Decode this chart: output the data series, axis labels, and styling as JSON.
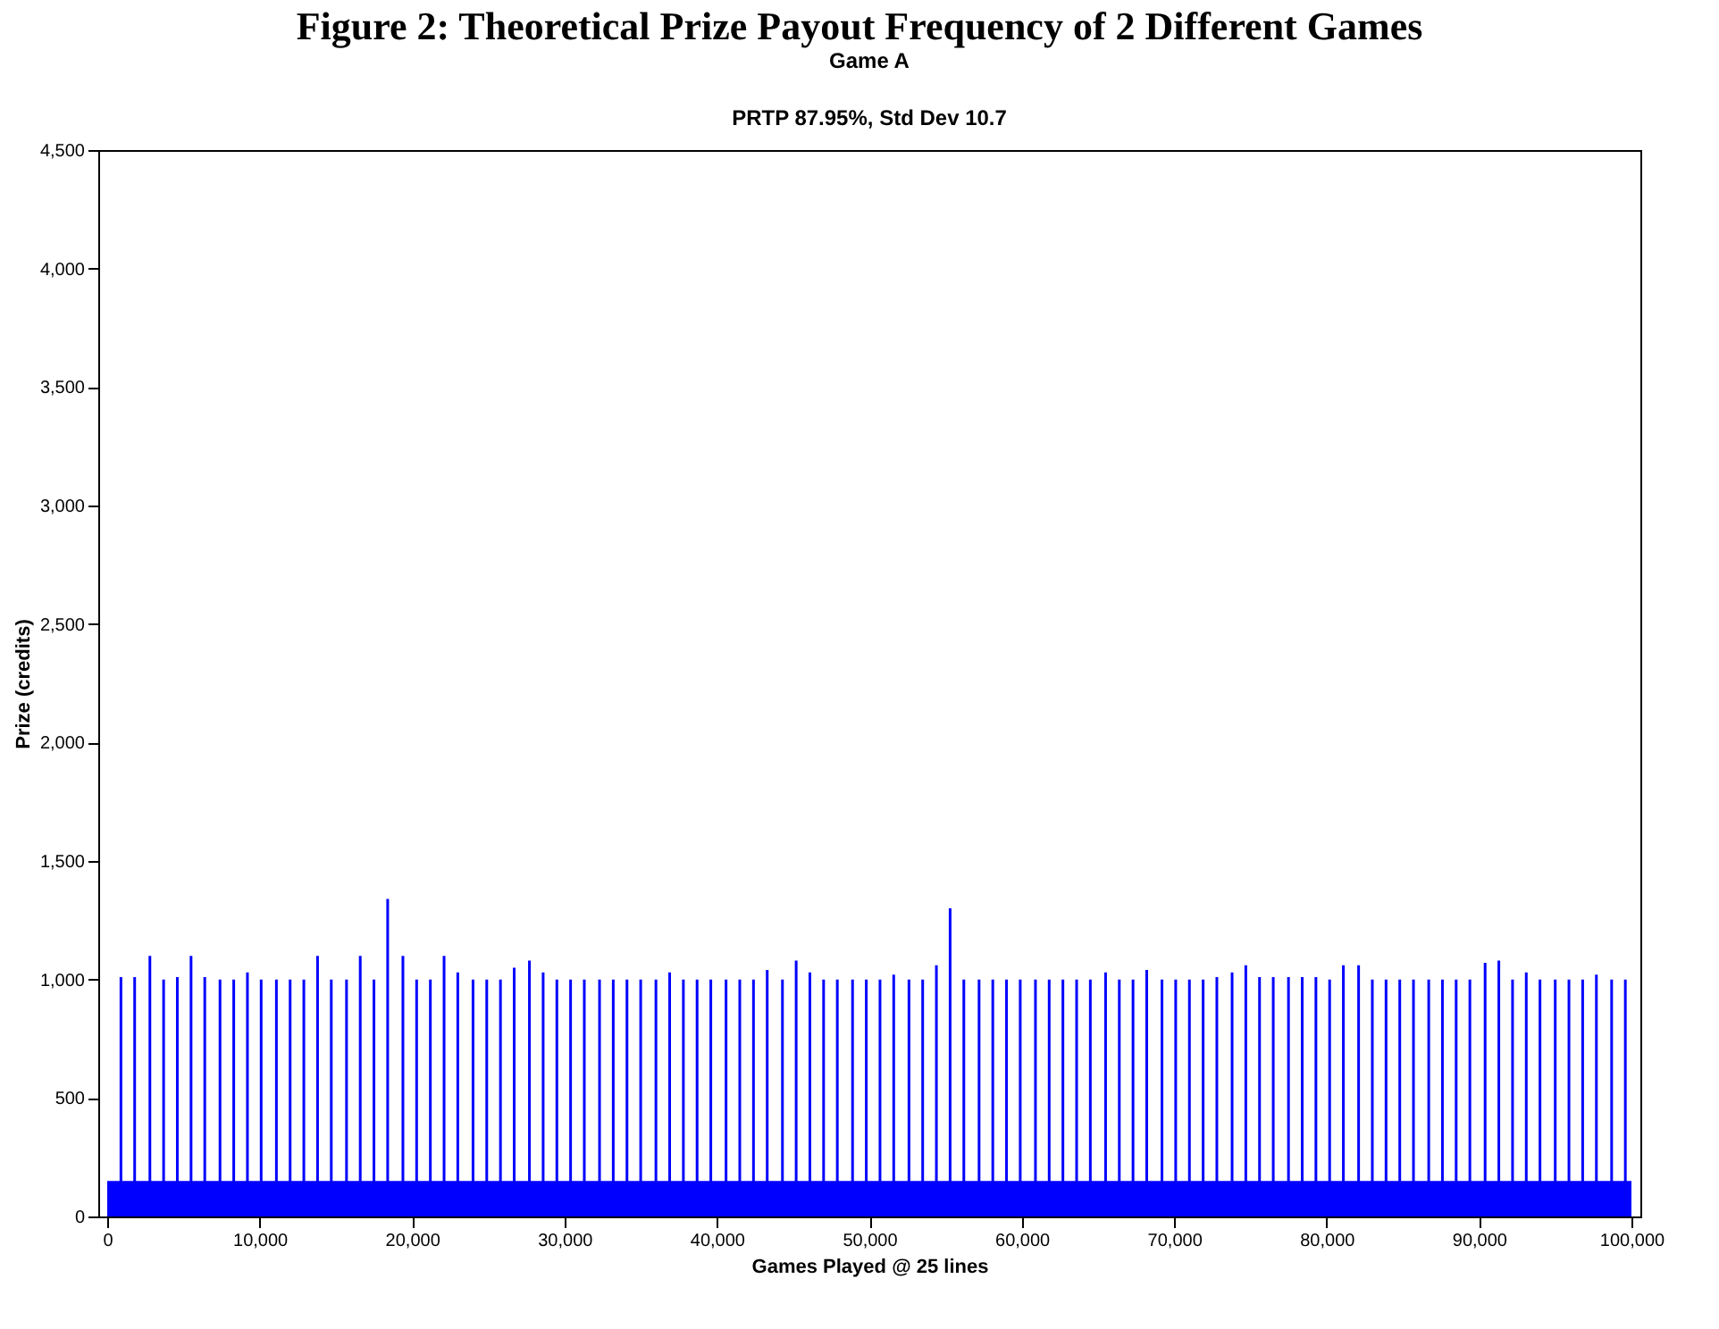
{
  "chart_data": {
    "type": "bar",
    "title": "Figure 2: Theoretical Prize Payout Frequency of 2 Different Games",
    "subtitle": "Game A",
    "annotations": [
      "PRTP 87.95%, Std Dev 10.7"
    ],
    "xlabel": "Games Played @ 25 lines",
    "ylabel": "Prize (credits)",
    "xlim": [
      0,
      100000
    ],
    "xticks": [
      0,
      {
        "value": 10000,
        "label": "10,000"
      },
      {
        "value": 20000,
        "label": "20,000"
      },
      {
        "value": 30000,
        "label": "30,000"
      },
      {
        "value": 40000,
        "label": "40,000"
      },
      {
        "value": 50000,
        "label": "50,000"
      },
      {
        "value": 60000,
        "label": "60,000"
      },
      {
        "value": 70000,
        "label": "70,000"
      },
      {
        "value": 80000,
        "label": "80,000"
      },
      {
        "value": 90000,
        "label": "90,000"
      },
      {
        "value": 100000,
        "label": "100,000"
      }
    ],
    "ylim": [
      0,
      4500
    ],
    "yticks": [
      0,
      500,
      {
        "value": 1000,
        "label": "1,000"
      },
      {
        "value": 1500,
        "label": "1,500"
      },
      {
        "value": 2000,
        "label": "2,000"
      },
      {
        "value": 2500,
        "label": "2,500"
      },
      {
        "value": 3000,
        "label": "3,000"
      },
      {
        "value": 3500,
        "label": "3,500"
      },
      {
        "value": 4000,
        "label": "4,000"
      },
      {
        "value": 4500,
        "label": "4,500"
      }
    ],
    "grid": false,
    "series": [
      {
        "type": "area",
        "color": "#0000ff",
        "x": [
          0,
          10000,
          20000,
          30000,
          40000,
          50000,
          60000,
          70000,
          80000,
          90000,
          100000
        ],
        "values": [
          150,
          150,
          150,
          150,
          150,
          150,
          150,
          150,
          150,
          150,
          150
        ]
      },
      {
        "color": "#0000ff",
        "x": [
          900,
          1800,
          2800,
          3700,
          4600,
          5500,
          6400,
          7400,
          8300,
          9200,
          10100,
          11100,
          12000,
          12900,
          13800,
          14700,
          15700,
          16600,
          17500,
          18400,
          19400,
          20300,
          21200,
          22100,
          23000,
          24000,
          24900,
          25800,
          26700,
          27700,
          28600,
          29500,
          30400,
          31300,
          32300,
          33200,
          34100,
          35000,
          36000,
          36900,
          37800,
          38700,
          39600,
          40600,
          41500,
          42400,
          43300,
          44300,
          45200,
          46100,
          47000,
          47900,
          48900,
          49800,
          50700,
          51600,
          52600,
          53500,
          54400,
          55300,
          56200,
          57200,
          58100,
          59000,
          59900,
          60900,
          61800,
          62700,
          63600,
          64500,
          65500,
          66400,
          67300,
          68200,
          69200,
          70100,
          71000,
          71900,
          72800,
          73800,
          74700,
          75600,
          76500,
          77500,
          78400,
          79300,
          80200,
          81100,
          82100,
          83000,
          83900,
          84800,
          85700,
          86700,
          87600,
          88500,
          89400,
          90400,
          91300,
          92200,
          93100,
          94000,
          95000,
          95900,
          96800,
          97700,
          98700,
          99600
        ],
        "values": [
          1010,
          1010,
          1100,
          1000,
          1010,
          1100,
          1010,
          1000,
          1000,
          1030,
          1000,
          1000,
          1000,
          1000,
          1100,
          1000,
          1000,
          1100,
          1000,
          1340,
          1100,
          1000,
          1000,
          1100,
          1030,
          1000,
          1000,
          1000,
          1050,
          1080,
          1030,
          1000,
          1000,
          1000,
          1000,
          1000,
          1000,
          1000,
          1000,
          1030,
          1000,
          1000,
          1000,
          1000,
          1000,
          1000,
          1040,
          1000,
          1080,
          1030,
          1000,
          1000,
          1000,
          1000,
          1000,
          1020,
          1000,
          1000,
          1060,
          1300,
          1000,
          1000,
          1000,
          1000,
          1000,
          1000,
          1000,
          1000,
          1000,
          1000,
          1030,
          1000,
          1000,
          1040,
          1000,
          1000,
          1000,
          1000,
          1010,
          1030,
          1060,
          1010,
          1010,
          1010,
          1010,
          1010,
          1000,
          1060,
          1060,
          1000,
          1000,
          1000,
          1000,
          1000,
          1000,
          1000,
          1000,
          1070,
          1080,
          1000,
          1030,
          1000,
          1000,
          1000,
          1000,
          1020,
          1000,
          1000
        ]
      }
    ]
  }
}
